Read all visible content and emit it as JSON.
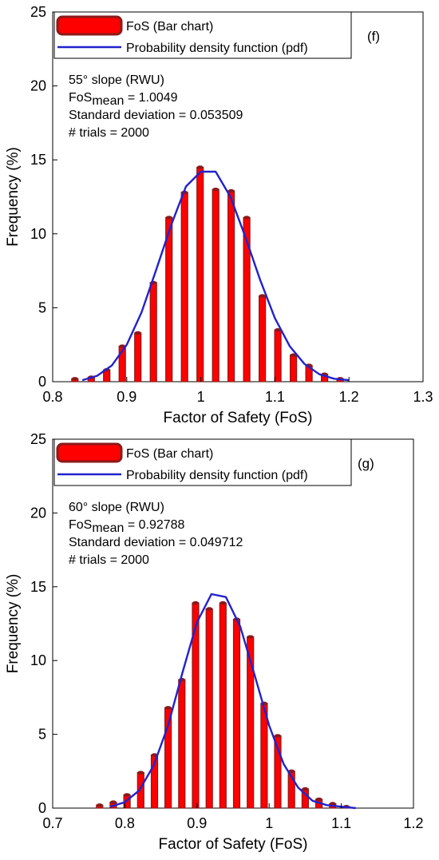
{
  "colors": {
    "bar_fill": "#ff0000",
    "bar_edge": "#8b1a1a",
    "pdf_line": "#2222cc",
    "axis": "#000000"
  },
  "chart_data": [
    {
      "type": "bar",
      "panel_label": "(f)",
      "xlabel": "Factor of Safety (FoS)",
      "ylabel": "Frequency (%)",
      "xlim": [
        0.8,
        1.3
      ],
      "ylim": [
        0,
        25
      ],
      "xticks": [
        0.8,
        0.9,
        1.0,
        1.1,
        1.2,
        1.3
      ],
      "xtick_labels": [
        "0.8",
        "0.9",
        "1",
        "1.1",
        "1.2",
        "1.3"
      ],
      "yticks": [
        0,
        5,
        10,
        15,
        20,
        25
      ],
      "ytick_labels": [
        "0",
        "5",
        "10",
        "15",
        "20",
        "25"
      ],
      "legend": {
        "position": "top",
        "bar_label": "FoS (Bar chart)",
        "line_label": "Probability density function (pdf)"
      },
      "annotation": {
        "line1": "55° slope (RWU)",
        "line2_prefix": "FoS",
        "line2_sub": "mean",
        "line2_suffix": " = 1.0049",
        "line3": "Standard deviation = 0.053509",
        "line4": "# trials = 2000"
      },
      "bars": {
        "x": [
          0.83,
          0.852,
          0.873,
          0.894,
          0.915,
          0.936,
          0.957,
          0.978,
          0.999,
          1.02,
          1.041,
          1.062,
          1.083,
          1.104,
          1.125,
          1.146,
          1.167,
          1.188
        ],
        "values": [
          0.2,
          0.3,
          0.8,
          2.4,
          3.3,
          6.7,
          11.1,
          12.8,
          14.5,
          13.0,
          12.9,
          11.1,
          5.8,
          3.5,
          1.8,
          1.1,
          0.5,
          0.2
        ]
      },
      "pdf": {
        "x": [
          0.84,
          0.86,
          0.88,
          0.9,
          0.92,
          0.94,
          0.96,
          0.98,
          1.0,
          1.02,
          1.04,
          1.06,
          1.08,
          1.1,
          1.12,
          1.14,
          1.16,
          1.18,
          1.2
        ],
        "values": [
          0.1,
          0.4,
          1.1,
          2.5,
          4.7,
          7.6,
          10.6,
          13.2,
          14.2,
          14.2,
          12.5,
          9.8,
          6.9,
          4.3,
          2.4,
          1.2,
          0.5,
          0.2,
          0.1
        ]
      }
    },
    {
      "type": "bar",
      "panel_label": "(g)",
      "xlabel": "Factor of Safety (FoS)",
      "ylabel": "Frequency (%)",
      "xlim": [
        0.7,
        1.2
      ],
      "ylim": [
        0,
        25
      ],
      "xticks": [
        0.7,
        0.8,
        0.9,
        1.0,
        1.1,
        1.2
      ],
      "xtick_labels": [
        "0.7",
        "0.8",
        "0.9",
        "1",
        "1.1",
        "1.2"
      ],
      "yticks": [
        0,
        5,
        10,
        15,
        20,
        25
      ],
      "ytick_labels": [
        "0",
        "5",
        "10",
        "15",
        "20",
        "25"
      ],
      "legend": {
        "position": "top",
        "bar_label": "FoS (Bar chart)",
        "line_label": "Probability density function (pdf)"
      },
      "annotation": {
        "line1": "60° slope (RWU)",
        "line2_prefix": "FoS",
        "line2_sub": "mean",
        "line2_suffix": " = 0.92788",
        "line3": "Standard deviation = 0.049712",
        "line4": "# trials = 2000"
      },
      "bars": {
        "x": [
          0.765,
          0.784,
          0.803,
          0.822,
          0.841,
          0.86,
          0.879,
          0.898,
          0.917,
          0.936,
          0.955,
          0.974,
          0.993,
          1.012,
          1.031,
          1.05,
          1.069,
          1.088,
          1.107
        ],
        "values": [
          0.2,
          0.4,
          0.9,
          2.4,
          3.6,
          6.8,
          8.7,
          13.9,
          13.5,
          13.9,
          12.8,
          11.6,
          7.1,
          4.9,
          2.5,
          1.3,
          0.6,
          0.3,
          0.1
        ]
      },
      "pdf": {
        "x": [
          0.78,
          0.8,
          0.82,
          0.84,
          0.86,
          0.88,
          0.9,
          0.92,
          0.94,
          0.96,
          0.98,
          1.0,
          1.02,
          1.04,
          1.06,
          1.08,
          1.1,
          1.12
        ],
        "values": [
          0.1,
          0.4,
          1.2,
          2.9,
          5.6,
          9.2,
          12.6,
          14.5,
          14.3,
          12.3,
          9.0,
          5.6,
          3.0,
          1.4,
          0.5,
          0.2,
          0.1,
          0.0
        ]
      }
    }
  ]
}
